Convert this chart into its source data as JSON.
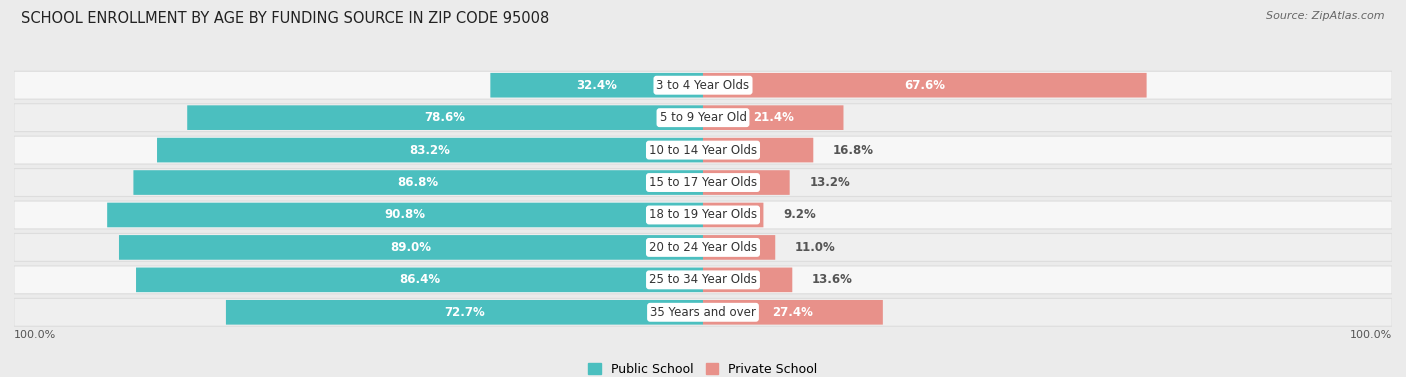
{
  "title": "SCHOOL ENROLLMENT BY AGE BY FUNDING SOURCE IN ZIP CODE 95008",
  "source": "Source: ZipAtlas.com",
  "categories": [
    "3 to 4 Year Olds",
    "5 to 9 Year Old",
    "10 to 14 Year Olds",
    "15 to 17 Year Olds",
    "18 to 19 Year Olds",
    "20 to 24 Year Olds",
    "25 to 34 Year Olds",
    "35 Years and over"
  ],
  "public_values": [
    32.4,
    78.6,
    83.2,
    86.8,
    90.8,
    89.0,
    86.4,
    72.7
  ],
  "private_values": [
    67.6,
    21.4,
    16.8,
    13.2,
    9.2,
    11.0,
    13.6,
    27.4
  ],
  "public_color": "#4BBFBF",
  "private_color": "#E8918A",
  "background_color": "#EBEBEB",
  "row_light": "#F5F5F5",
  "row_dark": "#ECECEC",
  "title_fontsize": 10.5,
  "source_fontsize": 8,
  "value_fontsize": 8.5,
  "category_fontsize": 8.5,
  "legend_fontsize": 9,
  "bottom_label": "100.0%"
}
